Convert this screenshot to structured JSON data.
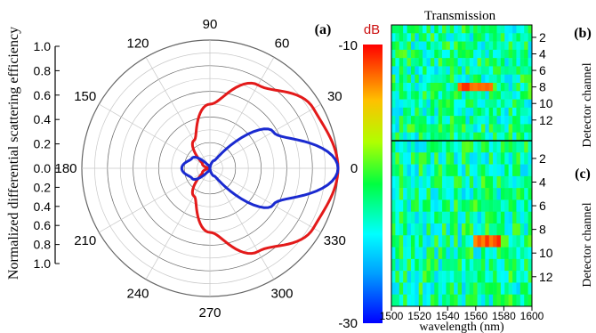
{
  "chart_data": [
    {
      "type": "polar-line",
      "panel_label": "(a)",
      "ylabel": "Normalized differential scattering efficiency",
      "radial_range": [
        0,
        1.0
      ],
      "radial_ticks": [
        "1.0",
        "0.8",
        "0.6",
        "0.4",
        "0.2",
        "0.0"
      ],
      "radial_ticks_lower": [
        "0.0",
        "0.2",
        "0.4",
        "0.6",
        "0.8",
        "1.0"
      ],
      "angle_ticks": [
        "0",
        "30",
        "60",
        "90",
        "120",
        "150",
        "180",
        "210",
        "240",
        "270",
        "300",
        "330"
      ],
      "angle_values": [
        0,
        30,
        60,
        90,
        120,
        150,
        180,
        210,
        240,
        270,
        300,
        330
      ],
      "grid": true,
      "series": [
        {
          "color": "#e31a1a",
          "description_values": {
            "model": "r = 0.5(1+cos θ)"
          },
          "theta": [
            0,
            30,
            60,
            90,
            120,
            150,
            180
          ],
          "r": [
            1.0,
            0.933,
            0.75,
            0.5,
            0.25,
            0.067,
            0.0
          ]
        },
        {
          "color": "#1a2ad0",
          "theta": [
            0,
            30,
            60,
            90,
            120,
            150,
            180
          ],
          "r": [
            1.0,
            0.57,
            0.07,
            0.0,
            0.03,
            0.16,
            0.22
          ]
        }
      ]
    },
    {
      "type": "heatmap",
      "panel_label": "(b)",
      "title": "Transmission",
      "ylabel": "Detector channel",
      "y_ticks": [
        "2",
        "4",
        "6",
        "8",
        "10",
        "12"
      ],
      "rows": 14,
      "cols": 36
    },
    {
      "type": "heatmap",
      "panel_label": "(c)",
      "ylabel": "Detector channel",
      "xlabel": "wavelength (nm)",
      "x_ticks": [
        "1500",
        "1520",
        "1540",
        "1560",
        "1580",
        "1600"
      ],
      "xlim": [
        1500,
        1600
      ],
      "y_ticks": [
        "2",
        "4",
        "6",
        "8",
        "10",
        "12"
      ],
      "rows": 14,
      "cols": 36
    }
  ],
  "colorbar": {
    "unit": "dB",
    "max_label": "-10",
    "min_label": "-30",
    "range": [
      -30,
      -10
    ]
  }
}
